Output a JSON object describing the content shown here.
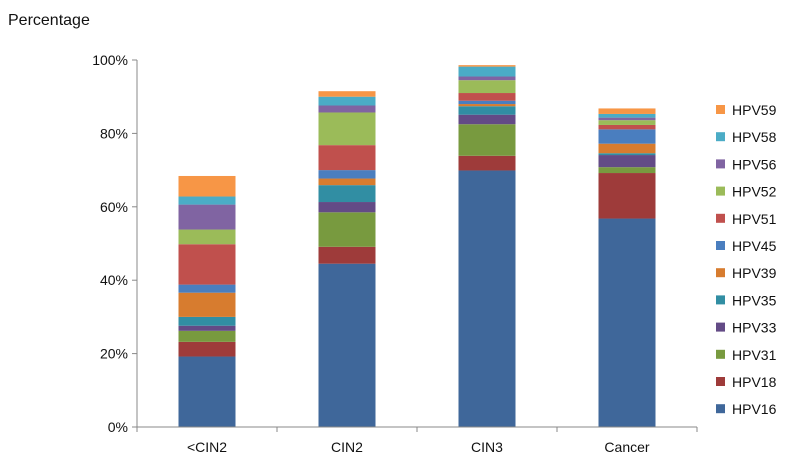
{
  "chart_data": {
    "type": "bar",
    "stacked": true,
    "ylabel": "Percentage",
    "ylim": [
      0,
      100
    ],
    "yticks": [
      "0%",
      "20%",
      "40%",
      "60%",
      "80%",
      "100%"
    ],
    "categories": [
      "<CIN2",
      "CIN2",
      "CIN3",
      "Cancer"
    ],
    "legend_position": "right",
    "grid": false,
    "series": [
      {
        "name": "HPV16",
        "color": "#3f679a",
        "values": [
          19.2,
          44.5,
          69.9,
          56.8
        ]
      },
      {
        "name": "HPV18",
        "color": "#9e3b3a",
        "values": [
          4.0,
          4.6,
          4.0,
          12.4
        ]
      },
      {
        "name": "HPV31",
        "color": "#789a3f",
        "values": [
          3.0,
          9.4,
          8.6,
          1.6
        ]
      },
      {
        "name": "HPV33",
        "color": "#634b86",
        "values": [
          1.4,
          2.8,
          2.6,
          3.3
        ]
      },
      {
        "name": "HPV35",
        "color": "#318ea3",
        "values": [
          2.4,
          4.6,
          2.3,
          0.5
        ]
      },
      {
        "name": "HPV39",
        "color": "#d77c2f",
        "values": [
          6.6,
          1.8,
          0.6,
          2.6
        ]
      },
      {
        "name": "HPV45",
        "color": "#4a7ebf",
        "values": [
          2.2,
          2.3,
          0.9,
          3.9
        ]
      },
      {
        "name": "HPV51",
        "color": "#c0504d",
        "values": [
          11.0,
          6.8,
          2.1,
          1.2
        ]
      },
      {
        "name": "HPV52",
        "color": "#9bbb59",
        "values": [
          4.0,
          8.9,
          3.5,
          1.3
        ]
      },
      {
        "name": "HPV56",
        "color": "#8064a2",
        "values": [
          6.8,
          1.9,
          1.0,
          0.7
        ]
      },
      {
        "name": "HPV58",
        "color": "#4bacc6",
        "values": [
          2.2,
          2.4,
          2.7,
          1.0
        ]
      },
      {
        "name": "HPV59",
        "color": "#f79646",
        "values": [
          5.6,
          1.5,
          0.4,
          1.5
        ]
      }
    ]
  }
}
